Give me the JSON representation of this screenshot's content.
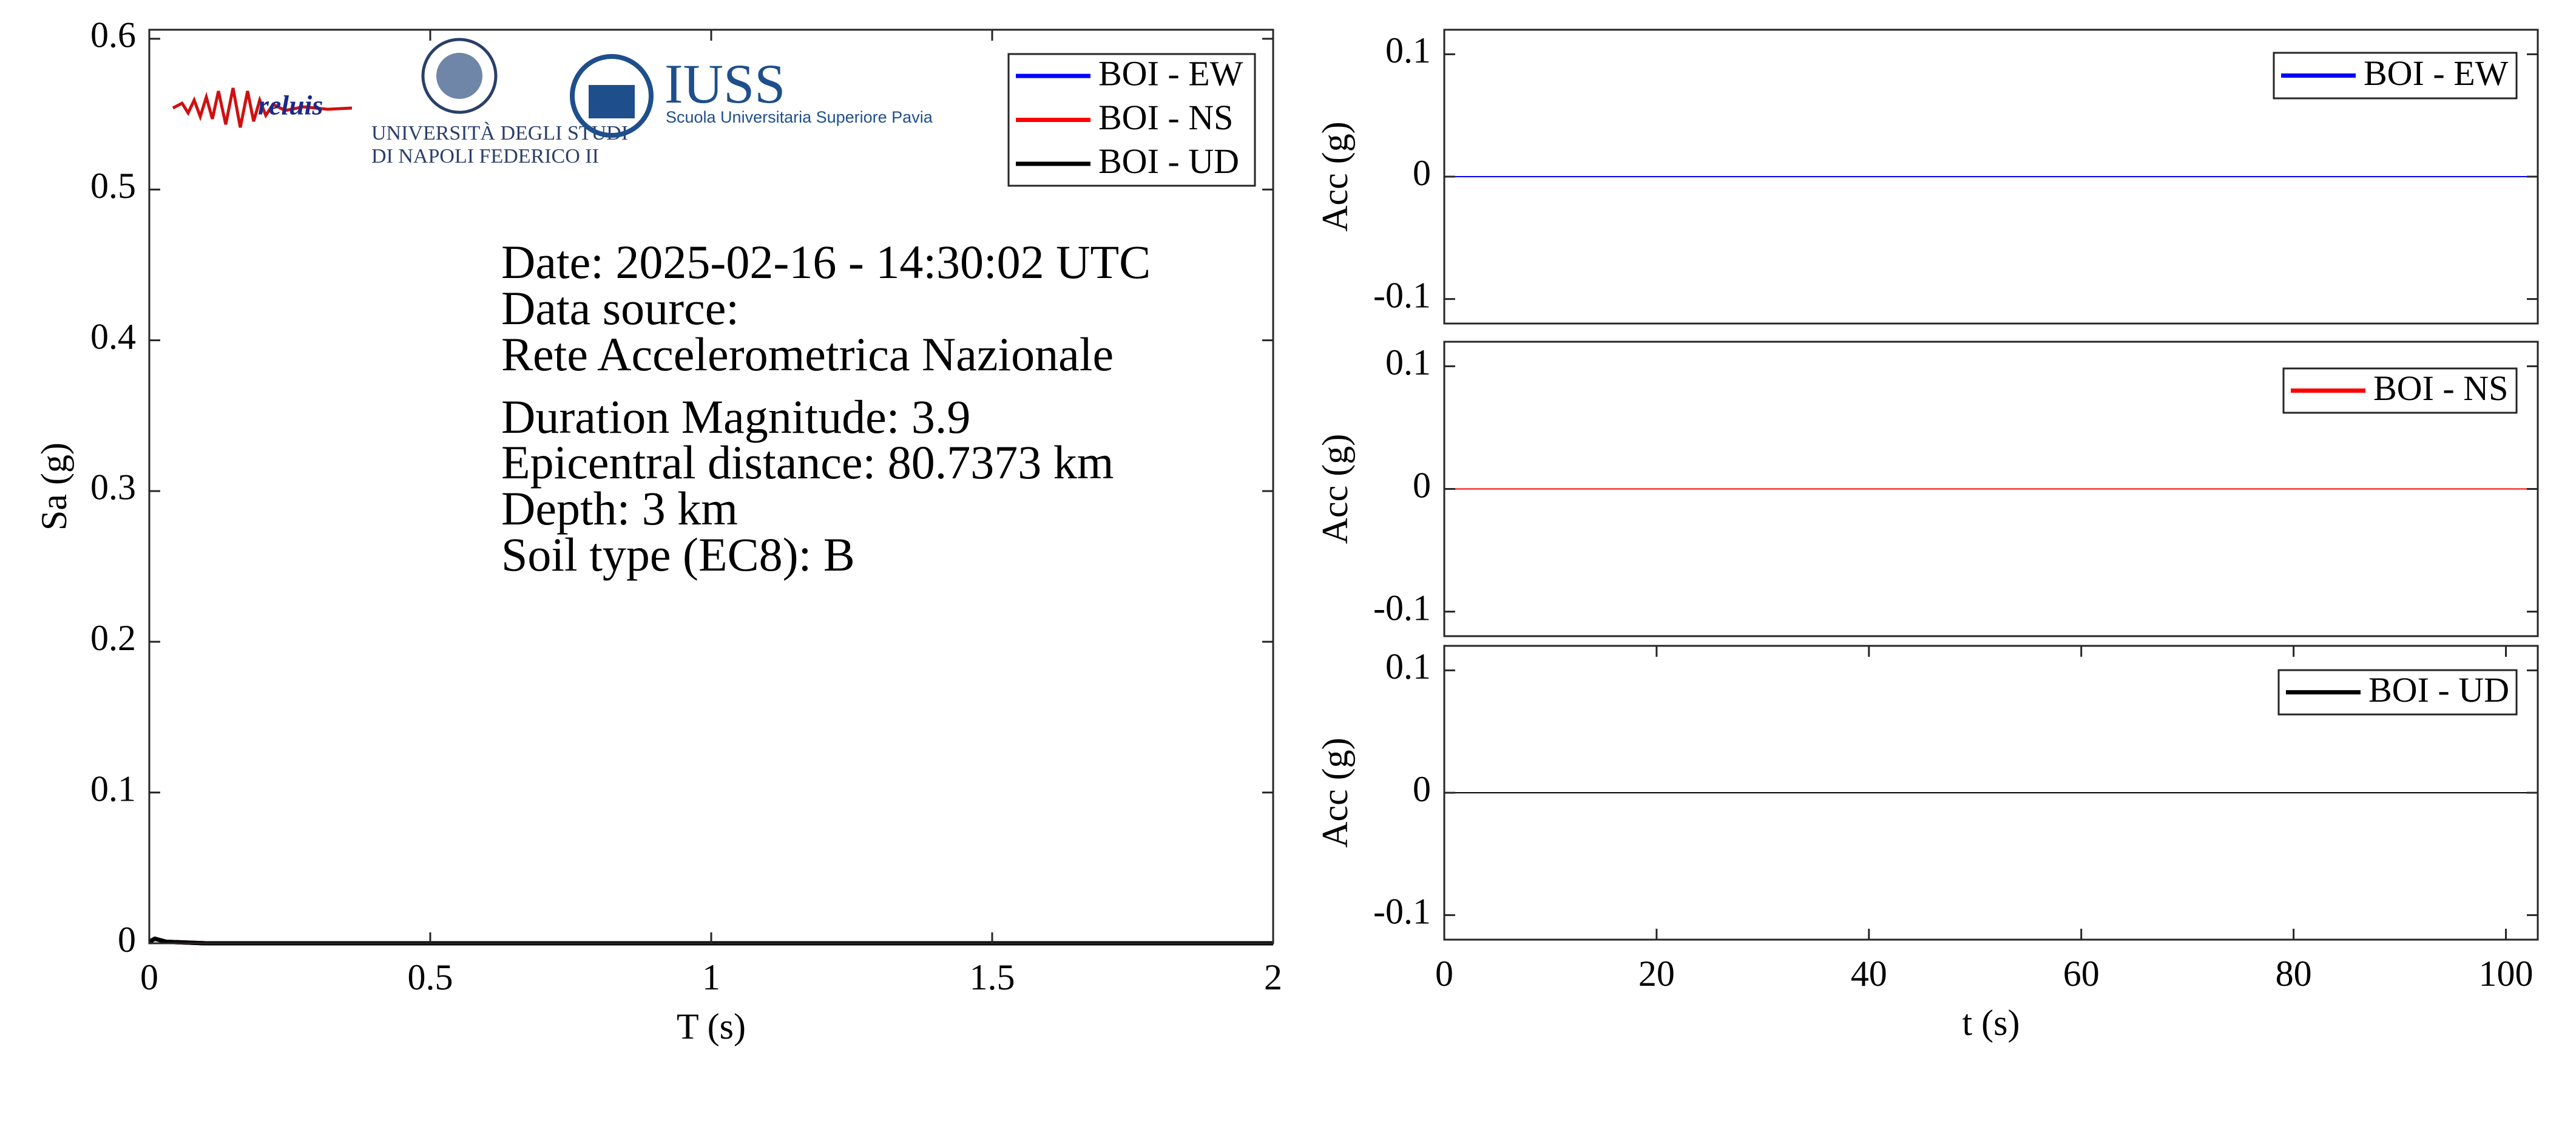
{
  "logos": {
    "reluis": "reluis",
    "unina_1": "UNIVERSITÀ DEGLI STUDI",
    "unina_2": "DI NAPOLI FEDERICO II",
    "iuss": "IUSS",
    "iuss_sub": "Scuola Universitaria Superiore Pavia"
  },
  "chart_data": [
    {
      "type": "line",
      "xlabel": "T (s)",
      "ylabel": "Sa (g)",
      "xlim": [
        0,
        2
      ],
      "xticks": [
        0,
        0.5,
        1,
        1.5,
        2
      ],
      "ylim": [
        0,
        0.606
      ],
      "yticks": [
        0,
        0.1,
        0.2,
        0.3,
        0.4,
        0.5,
        0.6
      ],
      "legend": "upper right",
      "annotations": [
        "Date: 2025-02-16 - 14:30:02 UTC",
        "Data source:",
        "Rete Accelerometrica Nazionale",
        "Duration Magnitude: 3.9",
        "Epicentral distance: 80.7373 km",
        "Depth: 3 km",
        "Soil type (EC8): B"
      ],
      "x": [
        0,
        0.01,
        0.03,
        0.1,
        2
      ],
      "series": [
        {
          "name": "BOI - EW",
          "color": "#0000ff",
          "values": [
            0.001,
            0.003,
            0.001,
            0,
            0
          ]
        },
        {
          "name": "BOI - NS",
          "color": "#ff0000",
          "values": [
            0.001,
            0.003,
            0.001,
            0,
            0
          ]
        },
        {
          "name": "BOI - UD",
          "color": "#000000",
          "values": [
            0.001,
            0.003,
            0.001,
            0,
            0
          ]
        }
      ]
    },
    {
      "type": "line",
      "ylabel": "Acc (g)",
      "xlim": [
        0,
        103
      ],
      "ylim": [
        -0.12,
        0.12
      ],
      "yticks": [
        -0.1,
        0,
        0.1
      ],
      "legend": "upper right",
      "x": [
        0,
        103
      ],
      "series": [
        {
          "name": "BOI - EW",
          "color": "#0000ff",
          "values": [
            0,
            0
          ]
        }
      ]
    },
    {
      "type": "line",
      "ylabel": "Acc (g)",
      "xlim": [
        0,
        103
      ],
      "ylim": [
        -0.12,
        0.12
      ],
      "yticks": [
        -0.1,
        0,
        0.1
      ],
      "legend": "upper right",
      "x": [
        0,
        103
      ],
      "series": [
        {
          "name": "BOI - NS",
          "color": "#ff0000",
          "values": [
            0,
            0
          ]
        }
      ]
    },
    {
      "type": "line",
      "xlabel": "t (s)",
      "ylabel": "Acc (g)",
      "xlim": [
        0,
        103
      ],
      "xticks": [
        0,
        20,
        40,
        60,
        80,
        100
      ],
      "ylim": [
        -0.12,
        0.12
      ],
      "yticks": [
        -0.1,
        0,
        0.1
      ],
      "legend": "upper right",
      "x": [
        0,
        103
      ],
      "series": [
        {
          "name": "BOI - UD",
          "color": "#000000",
          "values": [
            0,
            0
          ]
        }
      ]
    }
  ]
}
